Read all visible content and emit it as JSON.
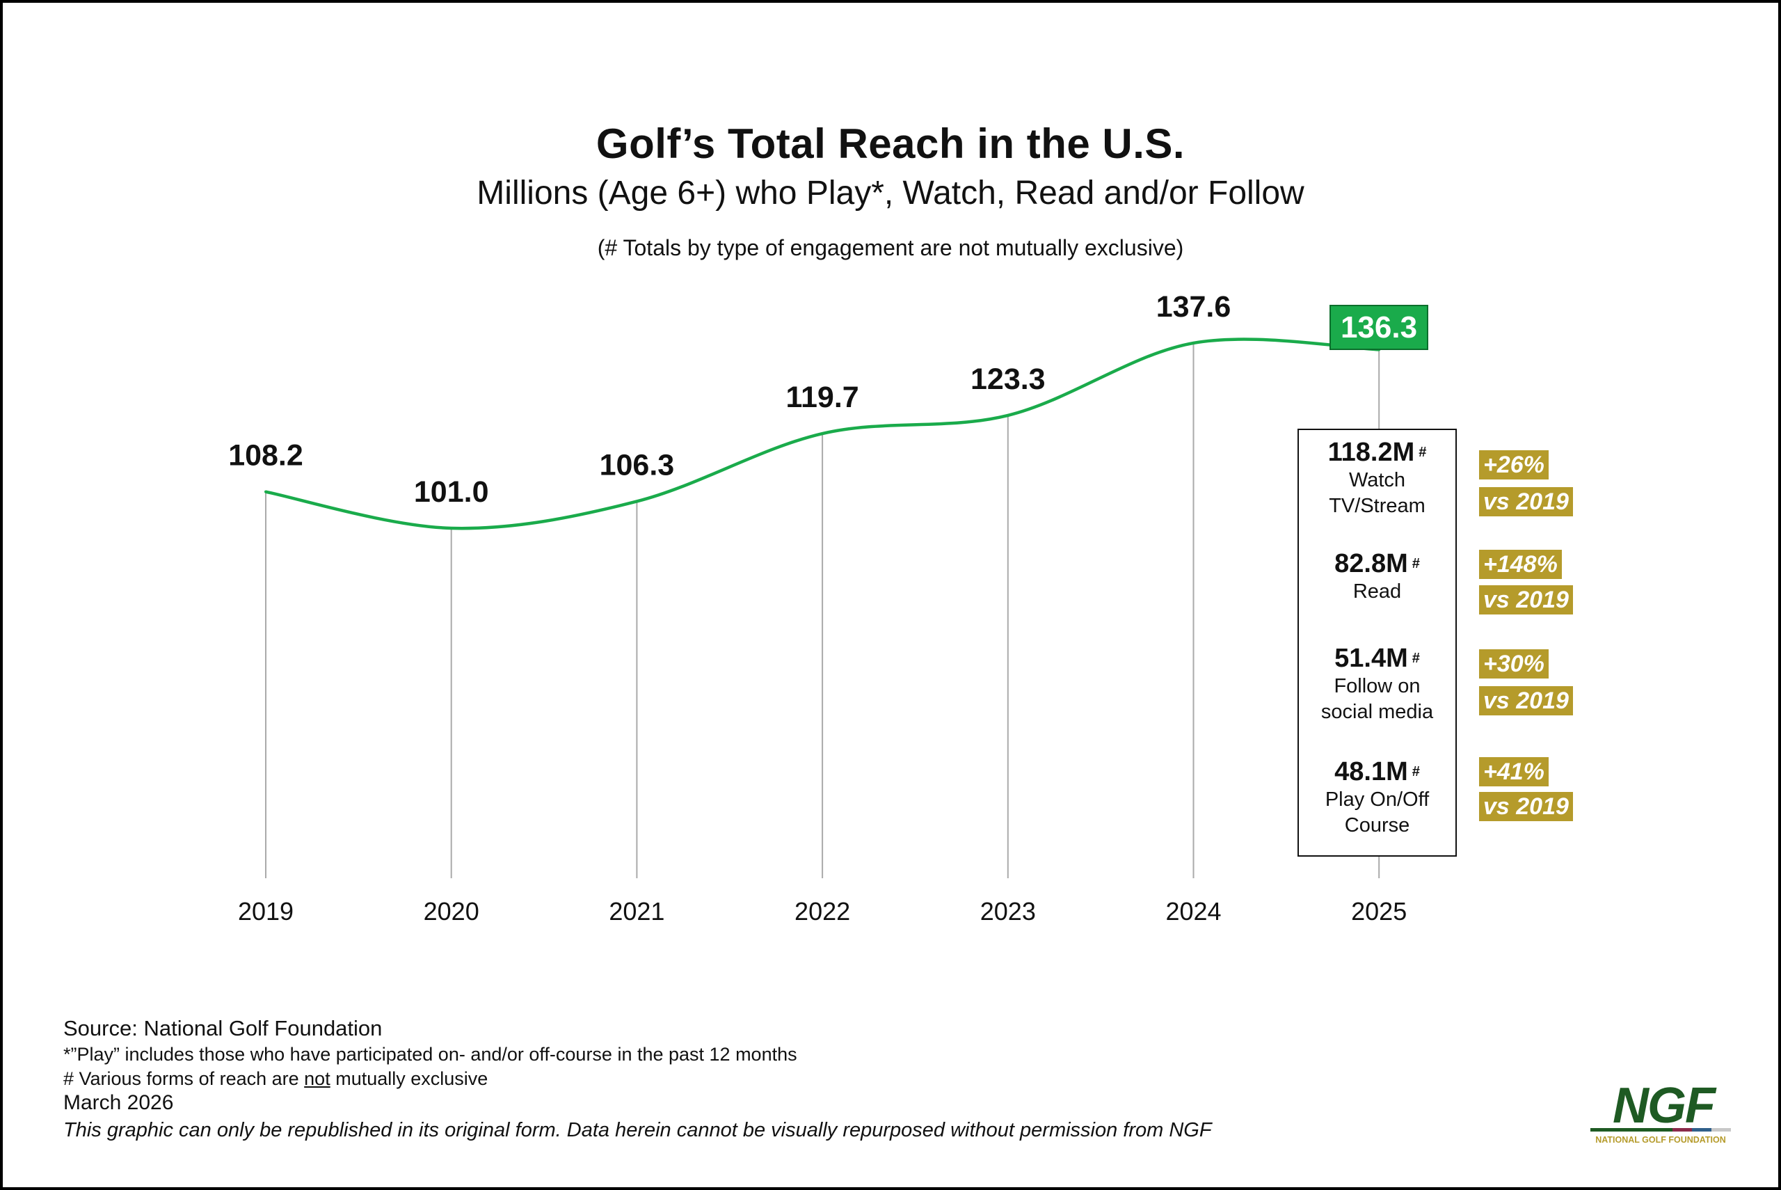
{
  "title": "Golf’s Total Reach in the U.S.",
  "subtitle": "Millions (Age 6+) who Play*, Watch, Read and/or Follow",
  "note": "(# Totals by type of engagement are not mutually exclusive)",
  "chart_data": {
    "type": "line",
    "categories": [
      "2019",
      "2020",
      "2021",
      "2022",
      "2023",
      "2024",
      "2025"
    ],
    "values": [
      108.2,
      101.0,
      106.3,
      119.7,
      123.3,
      137.6,
      136.3
    ],
    "value_labels": [
      "108.2",
      "101.0",
      "106.3",
      "119.7",
      "123.3",
      "137.6",
      "136.3"
    ],
    "line_color": "#1aab4b",
    "highlight_color": "#1aab4b",
    "grid": false
  },
  "breakdown": [
    {
      "value": "118.2M",
      "mark": "#",
      "label1": "Watch",
      "label2": "TV/Stream",
      "change": "+26%",
      "vs": "vs 2019"
    },
    {
      "value": "82.8M",
      "mark": "#",
      "label1": "Read",
      "label2": "",
      "change": "+148%",
      "vs": "vs 2019"
    },
    {
      "value": "51.4M",
      "mark": "#",
      "label1": "Follow on",
      "label2": "social media",
      "change": "+30%",
      "vs": "vs 2019"
    },
    {
      "value": "48.1M",
      "mark": "#",
      "label1": "Play On/Off",
      "label2": "Course",
      "change": "+41%",
      "vs": "vs 2019"
    }
  ],
  "tag_color": "#b59b2b",
  "footer": {
    "source_label": "Source:",
    "source": "National Golf Foundation",
    "line1": "*”Play” includes those who have participated on- and/or off-course in the past 12 months",
    "line2_pre": "# Various forms of reach are ",
    "line2_u": "not",
    "line2_post": " mutually exclusive",
    "date": "March 2026",
    "disclaimer": "This graphic can only be republished in its original form. Data herein cannot be visually repurposed without permission from NGF"
  },
  "logo": {
    "text": "NGF",
    "subtext": "NATIONAL GOLF FOUNDATION",
    "color": "#1e5a23",
    "sub_color": "#b59b2b"
  }
}
